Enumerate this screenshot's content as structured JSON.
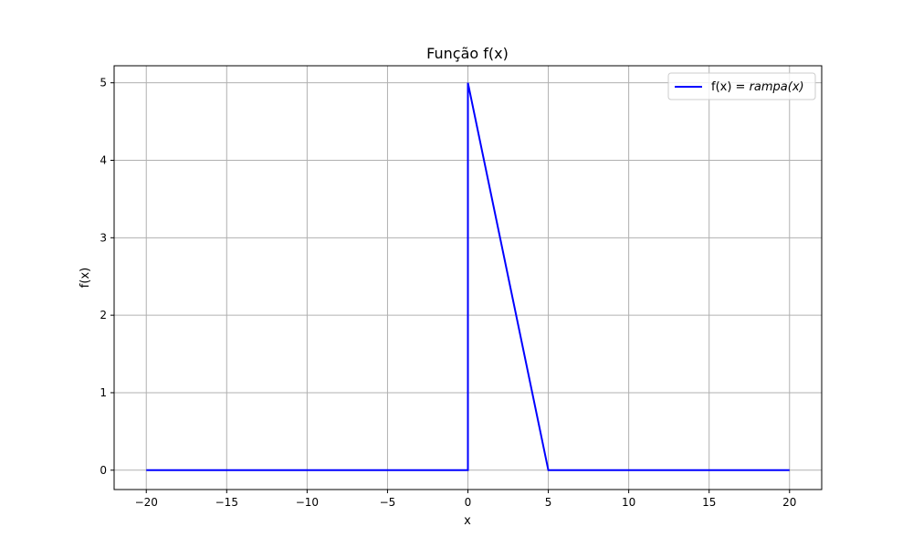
{
  "chart_data": {
    "type": "line",
    "title": "Função f(x)",
    "xlabel": "x",
    "ylabel": "f(x)",
    "xlim": [
      -22,
      22
    ],
    "ylim": [
      -0.25,
      5.22
    ],
    "xticks": [
      -20,
      -15,
      -10,
      -5,
      0,
      5,
      10,
      15,
      20
    ],
    "xtick_labels": [
      "−20",
      "−15",
      "−10",
      "−5",
      "0",
      "5",
      "10",
      "15",
      "20"
    ],
    "yticks": [
      0,
      1,
      2,
      3,
      4,
      5
    ],
    "ytick_labels": [
      "0",
      "1",
      "2",
      "3",
      "4",
      "5"
    ],
    "grid": true,
    "legend_position": "top-right",
    "series": [
      {
        "name": "f(x) = rampa(x)",
        "legend_prefix": "f(x) = ",
        "legend_math": "rampa(x)",
        "color": "#0000ff",
        "x": [
          -20,
          0,
          0,
          5,
          20
        ],
        "y": [
          0,
          0,
          5,
          0,
          0
        ]
      }
    ]
  }
}
